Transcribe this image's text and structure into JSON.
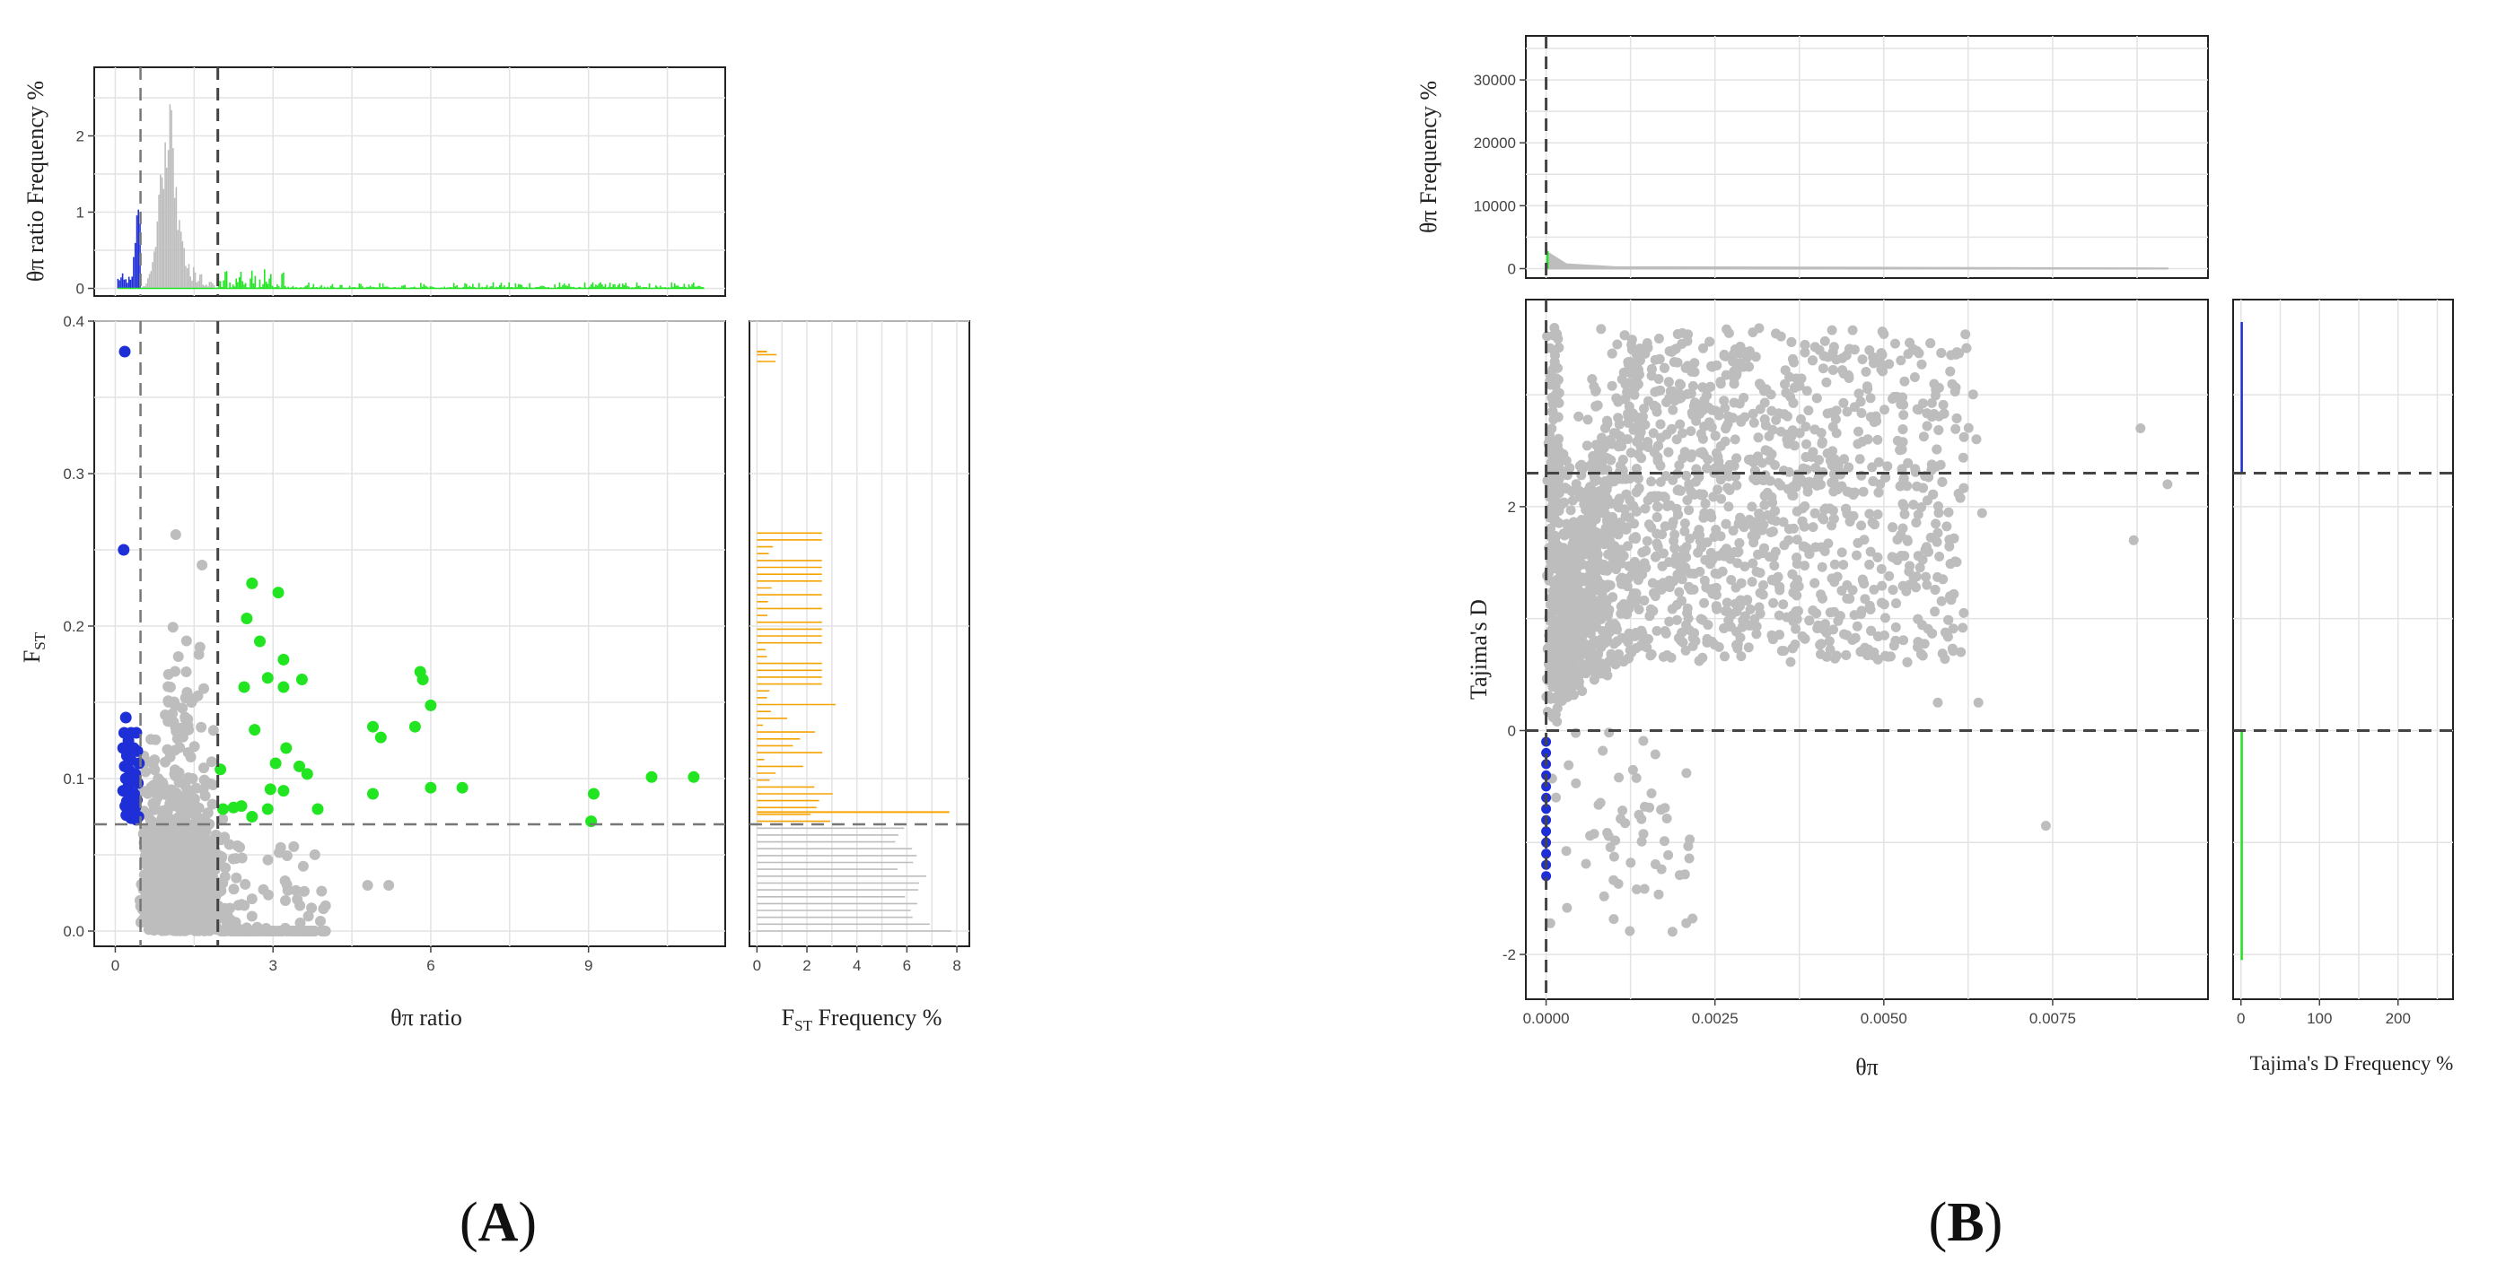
{
  "colors": {
    "gray": "#bdbdbd",
    "blue": "#1f2fd8",
    "green": "#22e522",
    "orange": "#f5a300",
    "threshold": "#444444"
  },
  "panels": [
    {
      "id": "A",
      "label_open": "(",
      "label_letter": "A",
      "label_close": ")",
      "top_hist": {
        "ylabel": "θπ ratio Frequency %",
        "yticks": [
          "0",
          "1",
          "2"
        ],
        "ylim": [
          -0.1,
          2.9
        ],
        "xlim": [
          -0.4,
          11.6
        ]
      },
      "scatter": {
        "xlabel": "θπ ratio",
        "ylabel_main": "F",
        "ylabel_sub": "ST",
        "xticks": [
          "0",
          "3",
          "6",
          "9"
        ],
        "yticks": [
          "0.0",
          "0.1",
          "0.2",
          "0.3",
          "0.4"
        ],
        "xlim": [
          -0.4,
          11.6
        ],
        "ylim": [
          -0.01,
          0.4
        ],
        "thresholds": {
          "x_low": 0.48,
          "x_high": 1.95,
          "y": 0.07
        }
      },
      "right_hist": {
        "xlabel_main": "F",
        "xlabel_sub": "ST",
        "xlabel_rest": " Frequency %",
        "xticks": [
          "0",
          "2",
          "4",
          "6",
          "8"
        ],
        "xlim": [
          -0.3,
          8.5
        ]
      }
    },
    {
      "id": "B",
      "label_open": "(",
      "label_letter": "B",
      "label_close": ")",
      "top_hist": {
        "ylabel": "θπ Frequency %",
        "yticks": [
          "0",
          "10000",
          "20000",
          "30000"
        ],
        "ylim": [
          -1500,
          37000
        ],
        "xlim": [
          -0.0003,
          0.0098
        ]
      },
      "scatter": {
        "xlabel": "θπ",
        "ylabel": "Tajima's D",
        "xticks": [
          "0.0000",
          "0.0025",
          "0.0050",
          "0.0075"
        ],
        "yticks": [
          "-2",
          "0",
          "2"
        ],
        "xlim": [
          -0.0003,
          0.0098
        ],
        "ylim": [
          -2.4,
          3.85
        ],
        "thresholds": {
          "x": 0.0,
          "y_low": 0.0,
          "y_high": 2.3
        }
      },
      "right_hist": {
        "xlabel": "Tajima's D Frequency %",
        "xticks": [
          "0",
          "100",
          "200"
        ],
        "xlim": [
          -10,
          270
        ]
      }
    }
  ],
  "chart_data": [
    {
      "type": "scatter",
      "panel": "A",
      "xlabel": "θπ ratio",
      "ylabel": "FST",
      "xlim": [
        -0.4,
        11.6
      ],
      "ylim": [
        -0.01,
        0.4
      ],
      "grid": true,
      "series": [
        {
          "name": "selected_low_ratio",
          "color": "#1f2fd8",
          "points": [
            [
              0.18,
              0.38
            ],
            [
              0.16,
              0.25
            ],
            [
              0.2,
              0.14
            ],
            [
              0.17,
              0.13
            ],
            [
              0.3,
              0.13
            ],
            [
              0.4,
              0.13
            ],
            [
              0.25,
              0.125
            ],
            [
              0.35,
              0.12
            ],
            [
              0.15,
              0.12
            ],
            [
              0.42,
              0.118
            ],
            [
              0.22,
              0.115
            ],
            [
              0.3,
              0.112
            ],
            [
              0.45,
              0.11
            ],
            [
              0.18,
              0.108
            ],
            [
              0.28,
              0.105
            ],
            [
              0.38,
              0.103
            ],
            [
              0.2,
              0.1
            ],
            [
              0.33,
              0.098
            ],
            [
              0.43,
              0.097
            ],
            [
              0.25,
              0.095
            ],
            [
              0.15,
              0.092
            ],
            [
              0.36,
              0.09
            ],
            [
              0.28,
              0.088
            ],
            [
              0.41,
              0.086
            ],
            [
              0.22,
              0.085
            ],
            [
              0.31,
              0.083
            ],
            [
              0.19,
              0.082
            ],
            [
              0.38,
              0.081
            ],
            [
              0.27,
              0.079
            ],
            [
              0.34,
              0.077
            ],
            [
              0.21,
              0.076
            ],
            [
              0.44,
              0.075
            ],
            [
              0.3,
              0.074
            ],
            [
              0.4,
              0.073
            ]
          ]
        },
        {
          "name": "selected_high_ratio",
          "color": "#22e522",
          "points": [
            [
              2.6,
              0.228
            ],
            [
              3.1,
              0.222
            ],
            [
              2.5,
              0.205
            ],
            [
              2.75,
              0.19
            ],
            [
              3.2,
              0.178
            ],
            [
              2.9,
              0.166
            ],
            [
              3.55,
              0.165
            ],
            [
              2.45,
              0.16
            ],
            [
              3.2,
              0.16
            ],
            [
              5.8,
              0.17
            ],
            [
              5.85,
              0.165
            ],
            [
              6.0,
              0.148
            ],
            [
              2.65,
              0.132
            ],
            [
              4.9,
              0.134
            ],
            [
              5.7,
              0.134
            ],
            [
              5.05,
              0.127
            ],
            [
              3.25,
              0.12
            ],
            [
              3.05,
              0.11
            ],
            [
              3.5,
              0.108
            ],
            [
              2.0,
              0.106
            ],
            [
              3.65,
              0.103
            ],
            [
              2.95,
              0.093
            ],
            [
              3.2,
              0.092
            ],
            [
              6.0,
              0.094
            ],
            [
              6.6,
              0.094
            ],
            [
              4.9,
              0.09
            ],
            [
              9.1,
              0.09
            ],
            [
              10.2,
              0.101
            ],
            [
              11.0,
              0.101
            ],
            [
              2.05,
              0.08
            ],
            [
              2.25,
              0.081
            ],
            [
              2.4,
              0.082
            ],
            [
              2.9,
              0.08
            ],
            [
              3.85,
              0.08
            ],
            [
              9.05,
              0.072
            ],
            [
              2.6,
              0.075
            ]
          ]
        }
      ]
    },
    {
      "type": "scatter",
      "panel": "B",
      "xlabel": "θπ",
      "ylabel": "Tajima's D",
      "xlim": [
        -0.0003,
        0.0098
      ],
      "ylim": [
        -2.4,
        3.85
      ],
      "grid": true,
      "series": [
        {
          "name": "selected",
          "color": "#1f2fd8",
          "points": [
            [
              0.0,
              -0.1
            ],
            [
              0.0,
              -0.2
            ],
            [
              0.0,
              -0.3
            ],
            [
              0.0,
              -0.4
            ],
            [
              0.0,
              -0.5
            ],
            [
              0.0,
              -0.6
            ],
            [
              0.0,
              -0.7
            ],
            [
              0.0,
              -0.8
            ],
            [
              0.0,
              -0.9
            ],
            [
              0.0,
              -1.0
            ],
            [
              0.0,
              -1.1
            ],
            [
              0.0,
              -1.2
            ],
            [
              0.0,
              -1.3
            ]
          ]
        }
      ]
    }
  ]
}
